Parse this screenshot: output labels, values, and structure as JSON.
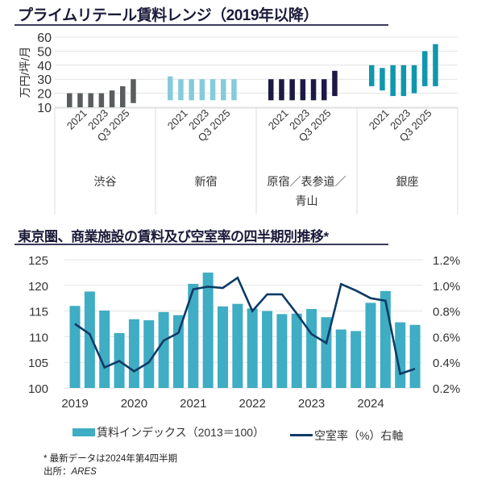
{
  "chart_data": [
    {
      "type": "bar",
      "subtype": "floating-range",
      "title": "プライムリテール賃料レンジ（2019年以降）",
      "ylabel": "万円/坪/月",
      "ylim": [
        10,
        60
      ],
      "yticks": [
        10,
        20,
        30,
        40,
        50,
        60
      ],
      "grid": true,
      "tick_labels": [
        "2021",
        "2023",
        "Q3 2025"
      ],
      "groups": [
        {
          "name": "渋谷",
          "color": "#595d5e",
          "ranges": [
            [
              10,
              20
            ],
            [
              10,
              20
            ],
            [
              10,
              20
            ],
            [
              10,
              20
            ],
            [
              10,
              22
            ],
            [
              10,
              25
            ],
            [
              13,
              30
            ]
          ]
        },
        {
          "name": "新宿",
          "color": "#85cbd9",
          "ranges": [
            [
              15,
              32
            ],
            [
              15,
              30
            ],
            [
              15,
              30
            ],
            [
              15,
              30
            ],
            [
              15,
              30
            ],
            [
              15,
              30
            ],
            [
              15,
              30
            ]
          ]
        },
        {
          "name": "原宿／表参道／青山",
          "name_lines": [
            "原宿／表参道／",
            "青山"
          ],
          "color": "#1c1a44",
          "ranges": [
            [
              15,
              30
            ],
            [
              15,
              30
            ],
            [
              15,
              30
            ],
            [
              15,
              30
            ],
            [
              15,
              30
            ],
            [
              15,
              30
            ],
            [
              18,
              36
            ]
          ]
        },
        {
          "name": "銀座",
          "color": "#0f97ad",
          "ranges": [
            [
              25,
              40
            ],
            [
              22,
              38
            ],
            [
              18,
              40
            ],
            [
              18,
              40
            ],
            [
              20,
              40
            ],
            [
              25,
              50
            ],
            [
              25,
              55
            ]
          ]
        }
      ]
    },
    {
      "type": "bar+line",
      "title": "東京圏、商業施設の賃料及び空室率の四半期別推移*",
      "x_tick_labels": [
        "2019",
        "2020",
        "2021",
        "2022",
        "2023",
        "2024"
      ],
      "quarters": [
        "2019Q1",
        "2019Q2",
        "2019Q3",
        "2019Q4",
        "2020Q1",
        "2020Q2",
        "2020Q3",
        "2020Q4",
        "2021Q1",
        "2021Q2",
        "2021Q3",
        "2021Q4",
        "2022Q1",
        "2022Q2",
        "2022Q3",
        "2022Q4",
        "2023Q1",
        "2023Q2",
        "2023Q3",
        "2023Q4",
        "2024Q1",
        "2024Q2",
        "2024Q3",
        "2024Q4"
      ],
      "ylim_left": [
        100,
        125
      ],
      "yticks_left": [
        "100",
        "105",
        "110",
        "115",
        "120",
        "125"
      ],
      "ylim_right": [
        0.2,
        1.2
      ],
      "yticks_right": [
        "0.2%",
        "0.4%",
        "0.6%",
        "0.8%",
        "1.0%",
        "1.2%"
      ],
      "grid": true,
      "legend_position": "bottom",
      "series": [
        {
          "name": "賃料インデックス（2013＝100）",
          "type": "bar",
          "axis": "left",
          "color": "#3fadc3",
          "values": [
            116.0,
            118.8,
            115.1,
            110.7,
            113.4,
            113.2,
            114.8,
            114.2,
            120.3,
            122.5,
            115.9,
            116.4,
            115.5,
            115.0,
            114.4,
            114.5,
            115.4,
            113.8,
            111.4,
            111.1,
            116.6,
            118.9,
            112.8,
            112.3
          ]
        },
        {
          "name": "空室率（%）右軸",
          "type": "line",
          "axis": "right",
          "color": "#0d3b66",
          "values": [
            0.7,
            0.62,
            0.36,
            0.41,
            0.33,
            0.4,
            0.57,
            0.63,
            0.97,
            0.99,
            0.98,
            1.06,
            0.8,
            0.93,
            0.93,
            0.78,
            0.62,
            0.55,
            1.01,
            0.96,
            0.9,
            0.88,
            0.31,
            0.35
          ]
        }
      ]
    }
  ],
  "notes": {
    "latest": "* 最新データは2024年第4四半期",
    "source_label": "出所：",
    "source_name": "ARES"
  }
}
